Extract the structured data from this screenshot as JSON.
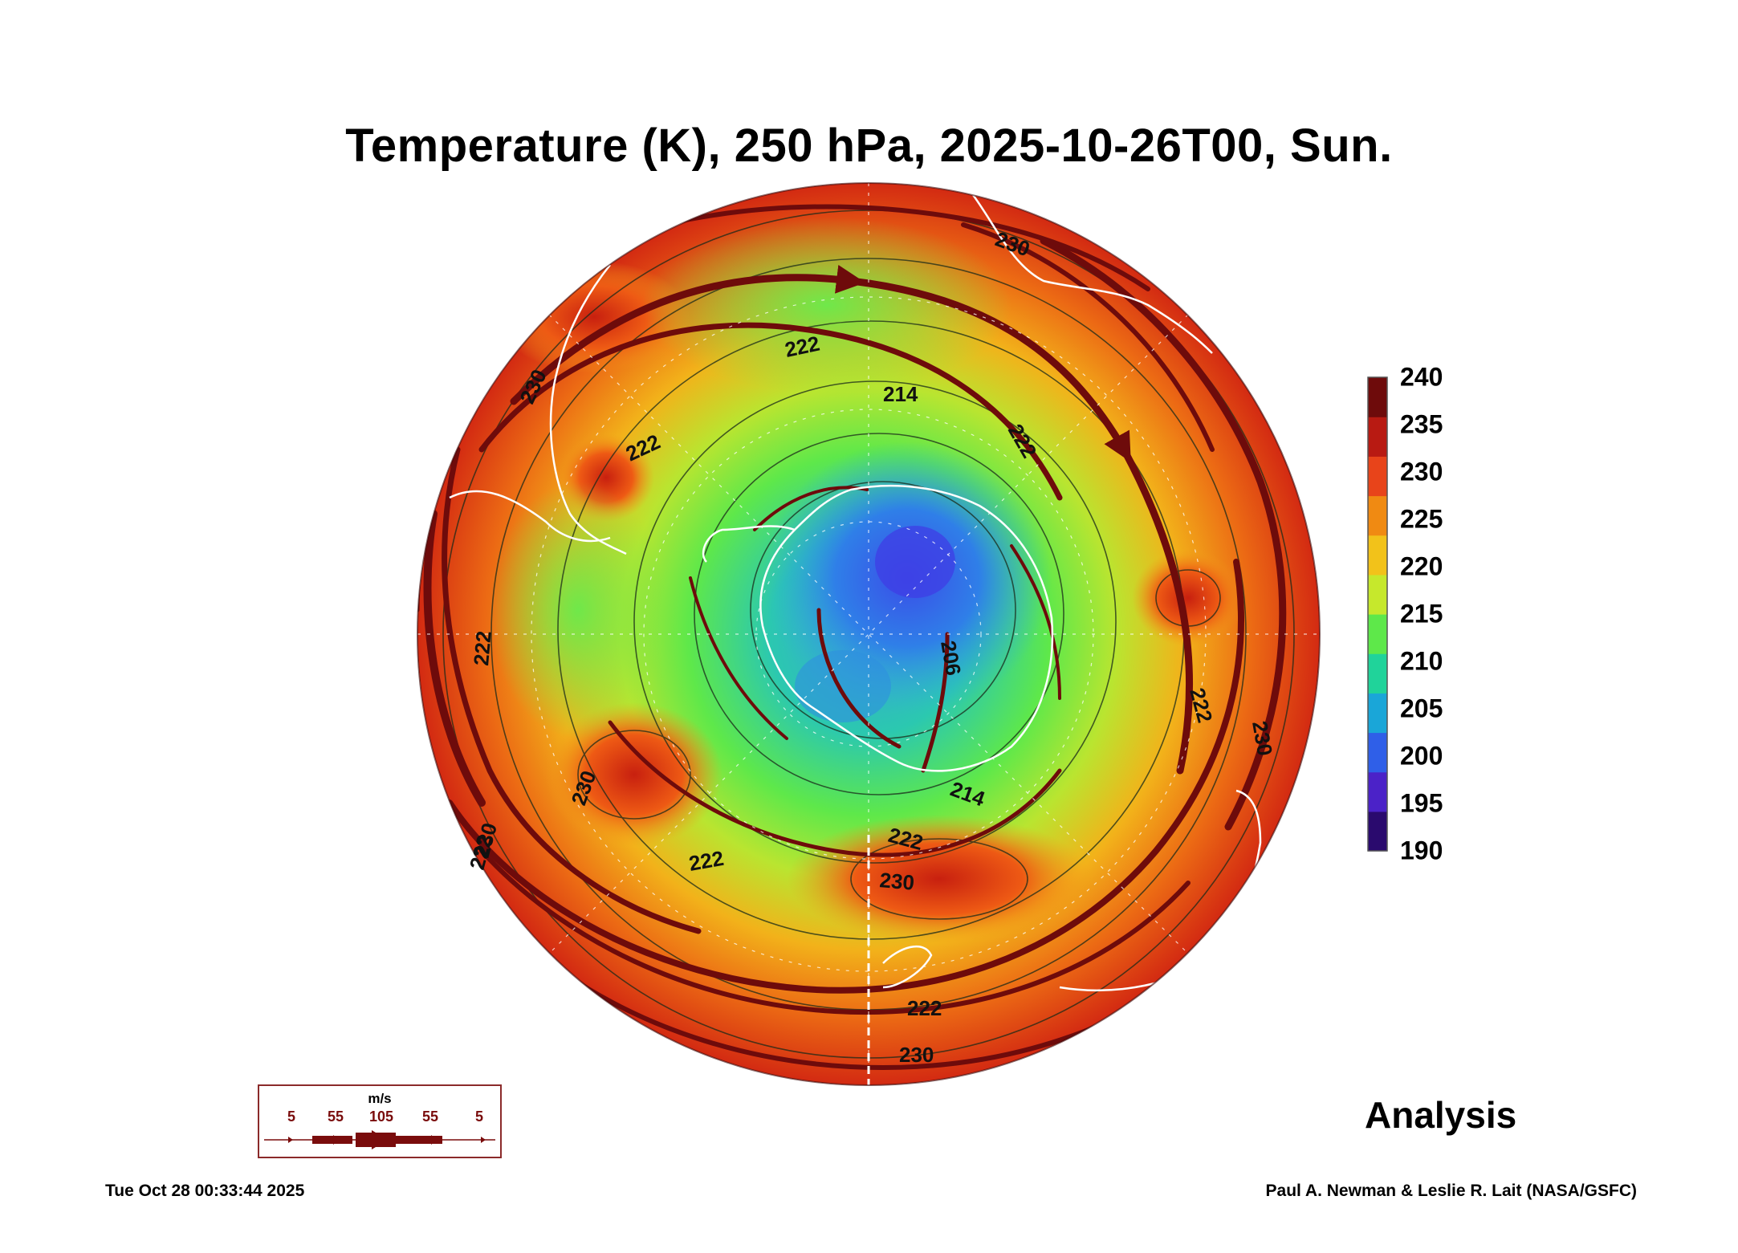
{
  "title": "Temperature (K), 250 hPa, 2025-10-26T00, Sun.",
  "map": {
    "projection": "south polar stereographic",
    "contour_labels": [
      "230",
      "222",
      "214",
      "222",
      "222",
      "230",
      "222",
      "214",
      "206",
      "222",
      "222",
      "230",
      "222",
      "230",
      "222",
      "230",
      "222",
      "230",
      "230"
    ]
  },
  "colorbar": {
    "unit": "K",
    "ticks": [
      "240",
      "235",
      "230",
      "225",
      "220",
      "215",
      "210",
      "205",
      "200",
      "195",
      "190"
    ],
    "range": [
      190,
      240
    ],
    "colors": [
      "#2a0a6e",
      "#4b22c8",
      "#2f5fe8",
      "#1aa6d8",
      "#20d39a",
      "#5ee84a",
      "#c6e82c",
      "#f2c21a",
      "#f08a12",
      "#e8441a",
      "#b81a12",
      "#6e0b0b"
    ]
  },
  "wind_legend": {
    "unit": "m/s",
    "values": [
      "5",
      "55",
      "105",
      "55",
      "5"
    ],
    "color": "#7a0c0c"
  },
  "analysis_label": "Analysis",
  "timestamp": "Tue Oct 28 00:33:44 2025",
  "credit": "Paul A. Newman & Leslie R. Lait (NASA/GSFC)"
}
